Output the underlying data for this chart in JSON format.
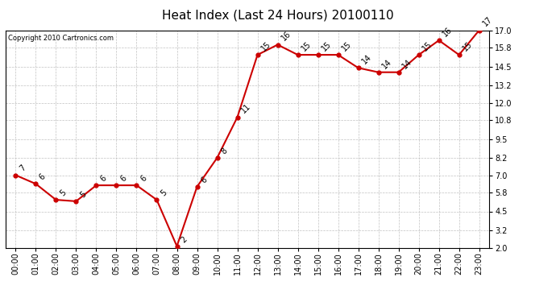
{
  "title": "Heat Index (Last 24 Hours) 20100110",
  "copyright": "Copyright 2010 Cartronics.com",
  "x_labels": [
    "00:00",
    "01:00",
    "02:00",
    "03:00",
    "04:00",
    "05:00",
    "06:00",
    "07:00",
    "08:00",
    "09:00",
    "10:00",
    "11:00",
    "12:00",
    "13:00",
    "14:00",
    "15:00",
    "16:00",
    "17:00",
    "18:00",
    "19:00",
    "20:00",
    "21:00",
    "22:00",
    "23:00"
  ],
  "y_values": [
    7.0,
    6.4,
    5.3,
    5.2,
    6.3,
    6.3,
    6.3,
    5.3,
    2.1,
    6.2,
    8.2,
    11.0,
    15.3,
    16.0,
    15.3,
    15.3,
    15.3,
    14.4,
    14.1,
    14.1,
    15.3,
    16.3,
    15.3,
    17.0
  ],
  "point_labels": [
    "7",
    "6",
    "5",
    "5",
    "6",
    "6",
    "6",
    "5",
    "2",
    "6",
    "8",
    "11",
    "15",
    "16",
    "15",
    "15",
    "15",
    "14",
    "14",
    "14",
    "15",
    "16",
    "15",
    "17"
  ],
  "ylim": [
    2.0,
    17.0
  ],
  "yticks": [
    2.0,
    3.2,
    4.5,
    5.8,
    7.0,
    8.2,
    9.5,
    10.8,
    12.0,
    13.2,
    14.5,
    15.8,
    17.0
  ],
  "line_color": "#CC0000",
  "marker_color": "#CC0000",
  "bg_color": "#FFFFFF",
  "plot_bg_color": "#FFFFFF",
  "grid_color": "#BBBBBB",
  "title_fontsize": 11,
  "annotation_fontsize": 7,
  "tick_fontsize": 7,
  "copyright_fontsize": 6
}
